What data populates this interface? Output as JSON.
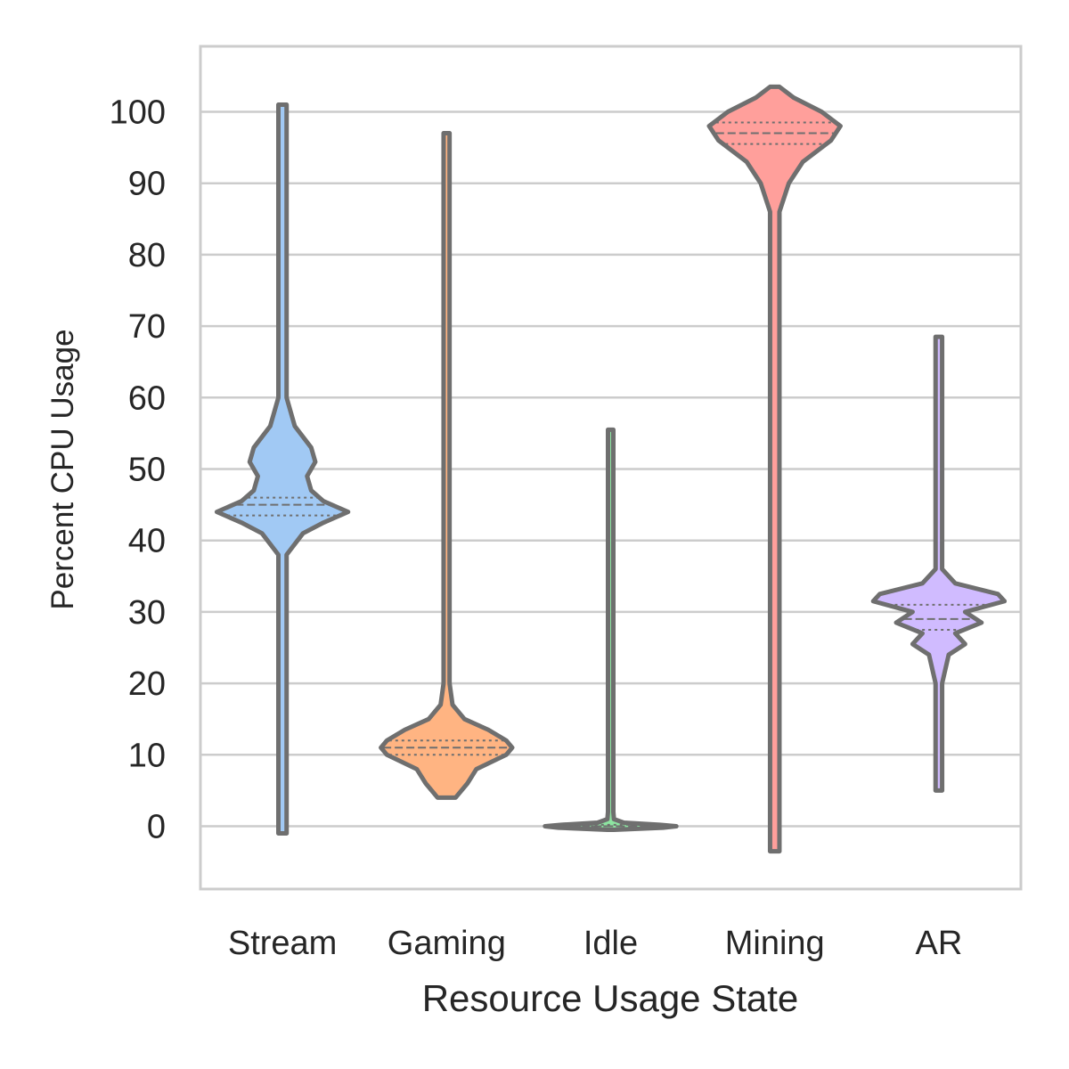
{
  "chart_data": {
    "type": "violin",
    "title": "",
    "xlabel": "Resource Usage State",
    "ylabel": "Percent CPU Usage",
    "categories": [
      "Stream",
      "Gaming",
      "Idle",
      "Mining",
      "AR"
    ],
    "ylim": [
      -9,
      109
    ],
    "yticks": [
      0,
      10,
      20,
      30,
      40,
      50,
      60,
      70,
      80,
      90,
      100
    ],
    "grid": "horizontal",
    "violins": [
      {
        "category": "Stream",
        "color": "#a1c9f4",
        "min": -1,
        "max": 101,
        "quartiles": [
          43.5,
          45.0,
          46.0
        ],
        "profile": [
          [
            -1,
            0.01
          ],
          [
            38,
            0.01
          ],
          [
            41,
            0.05
          ],
          [
            42.5,
            0.1
          ],
          [
            44,
            0.16
          ],
          [
            45.5,
            0.1
          ],
          [
            47,
            0.07
          ],
          [
            49,
            0.06
          ],
          [
            51,
            0.08
          ],
          [
            53,
            0.07
          ],
          [
            56,
            0.03
          ],
          [
            60,
            0.01
          ],
          [
            101,
            0.01
          ]
        ]
      },
      {
        "category": "Gaming",
        "color": "#ffb482",
        "min": 4,
        "max": 97,
        "quartiles": [
          10.0,
          11.0,
          12.0
        ],
        "profile": [
          [
            4,
            0.03
          ],
          [
            6,
            0.07
          ],
          [
            8,
            0.1
          ],
          [
            10,
            0.2
          ],
          [
            11,
            0.22
          ],
          [
            12,
            0.2
          ],
          [
            13.5,
            0.14
          ],
          [
            15,
            0.06
          ],
          [
            17,
            0.02
          ],
          [
            20,
            0.01
          ],
          [
            97,
            0.01
          ]
        ]
      },
      {
        "category": "Idle",
        "color": "#8de5a1",
        "min": -0.5,
        "max": 55.5,
        "quartiles": [
          0.0,
          0.0,
          0.2
        ],
        "profile": [
          [
            -0.5,
            0.05
          ],
          [
            -0.2,
            0.8
          ],
          [
            0,
            1.0
          ],
          [
            0.2,
            0.75
          ],
          [
            0.5,
            0.2
          ],
          [
            1,
            0.05
          ],
          [
            2,
            0.01
          ],
          [
            55.5,
            0.01
          ]
        ]
      },
      {
        "category": "Mining",
        "color": "#ff9f9b",
        "min": -3.5,
        "max": 103.5,
        "quartiles": [
          95.5,
          97.0,
          98.5
        ],
        "profile": [
          [
            -3.5,
            0.01
          ],
          [
            86,
            0.01
          ],
          [
            90,
            0.03
          ],
          [
            93,
            0.06
          ],
          [
            96,
            0.12
          ],
          [
            98,
            0.14
          ],
          [
            100,
            0.1
          ],
          [
            102,
            0.04
          ],
          [
            103.5,
            0.01
          ]
        ]
      },
      {
        "category": "AR",
        "color": "#d0bbff",
        "min": 5,
        "max": 68.5,
        "quartiles": [
          27.5,
          29.0,
          31.0
        ],
        "profile": [
          [
            5,
            0.01
          ],
          [
            20,
            0.01
          ],
          [
            24,
            0.03
          ],
          [
            25.5,
            0.08
          ],
          [
            27,
            0.05
          ],
          [
            28.5,
            0.13
          ],
          [
            30,
            0.08
          ],
          [
            31.5,
            0.2
          ],
          [
            32.5,
            0.18
          ],
          [
            34,
            0.05
          ],
          [
            36,
            0.01
          ],
          [
            68.5,
            0.01
          ]
        ]
      }
    ]
  }
}
